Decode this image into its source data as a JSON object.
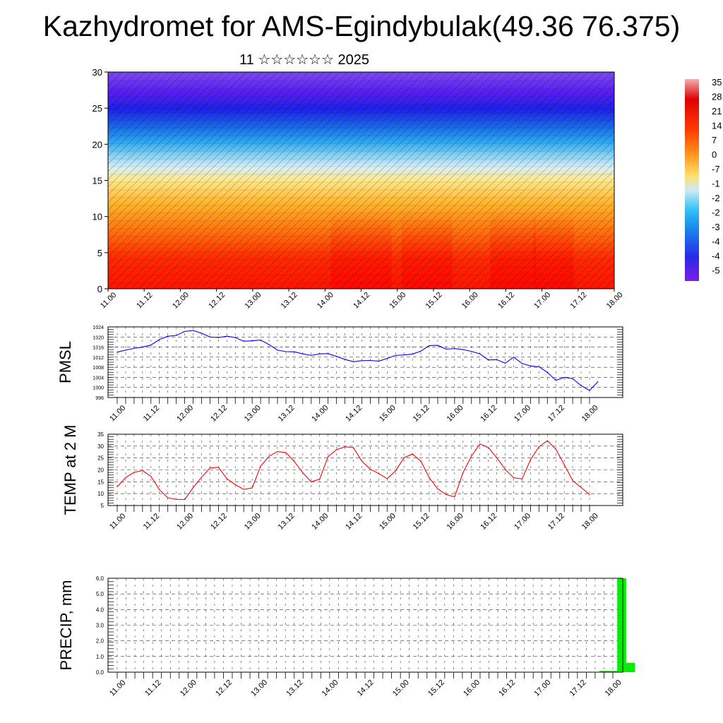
{
  "header": {
    "title": "Kazhydromet for AMS-Egindybulak(49.36 76.375)",
    "subtitle": "11 ☆☆☆☆☆☆ 2025"
  },
  "time_labels": [
    "11.00",
    "11.12",
    "12.00",
    "12.12",
    "13.00",
    "13.12",
    "14.00",
    "14.12",
    "15.00",
    "15.12",
    "16.00",
    "16.12",
    "17.00",
    "17.12",
    "18.00"
  ],
  "chart_data": [
    {
      "id": "upper-air",
      "type": "heatmap",
      "y_ticks": [
        "0",
        "5",
        "10",
        "15",
        "20",
        "25",
        "30"
      ],
      "ylim": [
        0,
        30
      ],
      "colorbar_labels": [
        "35",
        "28",
        "21",
        "14",
        "7",
        "0",
        "-7",
        "-1",
        "-2",
        "-2",
        "-3",
        "-4",
        "-4",
        "-5"
      ],
      "colors": {
        "cold": "#6a1be8",
        "mid": "#ffe066",
        "warm": "#ff1a00"
      }
    },
    {
      "id": "pmsl",
      "type": "line",
      "ylabel": "PMSL",
      "y_ticks": [
        "996",
        "1000",
        "1004",
        "1008",
        "1012",
        "1016",
        "1020",
        "1024"
      ],
      "ylim": [
        996,
        1024
      ],
      "color": "#0000ff",
      "values": [
        1014,
        1014.8,
        1015.5,
        1016,
        1016.8,
        1019,
        1020.3,
        1020.6,
        1022.2,
        1022.6,
        1021.5,
        1020,
        1019.8,
        1020.3,
        1019.8,
        1018.3,
        1018.5,
        1018.8,
        1017,
        1014.8,
        1014.2,
        1014.1,
        1013.3,
        1012.7,
        1013.3,
        1013.4,
        1012.3,
        1011.1,
        1010.2,
        1010.6,
        1010.7,
        1010.4,
        1011.5,
        1012.7,
        1012.9,
        1013.2,
        1014.4,
        1016.6,
        1016.7,
        1015.2,
        1015.4,
        1015,
        1014.3,
        1013.3,
        1010.9,
        1011,
        1009.6,
        1012,
        1009.5,
        1008.5,
        1008.2,
        1006,
        1002.8,
        1004,
        1003.5,
        1000.7,
        998.8,
        1002.3
      ]
    },
    {
      "id": "temp2m",
      "type": "line",
      "ylabel": "TEMP at 2 M",
      "y_ticks": [
        "5",
        "10",
        "15",
        "20",
        "25",
        "30",
        "35"
      ],
      "ylim": [
        5,
        35
      ],
      "color": "#ff0000",
      "values": [
        12.9,
        16.8,
        19,
        19.7,
        17.3,
        11.7,
        8.3,
        7.6,
        7.5,
        12.5,
        16.9,
        20.8,
        21.1,
        16.3,
        13.8,
        11.8,
        12.4,
        21.6,
        25.7,
        27.7,
        27.3,
        23.5,
        18.8,
        15,
        16.1,
        25.6,
        28.5,
        29.7,
        29.4,
        23.7,
        20.3,
        18.5,
        16.3,
        19.6,
        25.1,
        26.7,
        23.6,
        16.7,
        12,
        9.6,
        8.7,
        18.9,
        25.8,
        30.9,
        29.4,
        25.1,
        20.2,
        16.7,
        16.2,
        24.3,
        29.7,
        32.3,
        28.7,
        22.2,
        15.5,
        12.6,
        9.6
      ]
    },
    {
      "id": "precip",
      "type": "bar",
      "ylabel": "PRECIP, mm",
      "y_ticks": [
        "0.0",
        "1.0",
        "2.0",
        "3.0",
        "4.0",
        "5.0",
        "6.0"
      ],
      "ylim": [
        0,
        6
      ],
      "color": "#00ee00",
      "bars": [
        {
          "time": 55,
          "value": 0.08
        },
        {
          "time": 56,
          "value": 0.08
        },
        {
          "time": 57,
          "value": 6.0
        },
        {
          "time": 58,
          "value": 0.6
        }
      ]
    }
  ]
}
